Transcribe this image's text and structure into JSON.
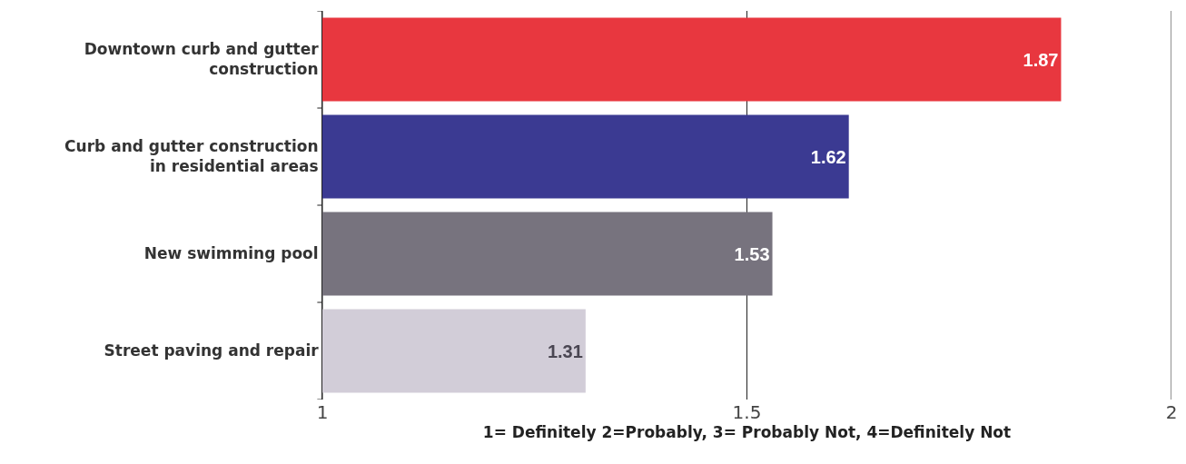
{
  "chart_data": {
    "type": "bar",
    "orientation": "horizontal",
    "categories": [
      "Downtown curb and gutter construction",
      "Curb and gutter construction in residential areas",
      "New swimming pool",
      "Street paving and repair"
    ],
    "values": [
      1.87,
      1.62,
      1.53,
      1.31
    ],
    "colors": [
      "#e8373f",
      "#3b3a92",
      "#77737e",
      "#d2cdd8"
    ],
    "xlim": [
      1,
      2
    ],
    "xticks": [
      1,
      1.5,
      2
    ],
    "grid": "x",
    "data_labels": true,
    "xlabel": "1= Definitely 2=Probably, 3= Probably Not, 4=Definitely Not"
  }
}
